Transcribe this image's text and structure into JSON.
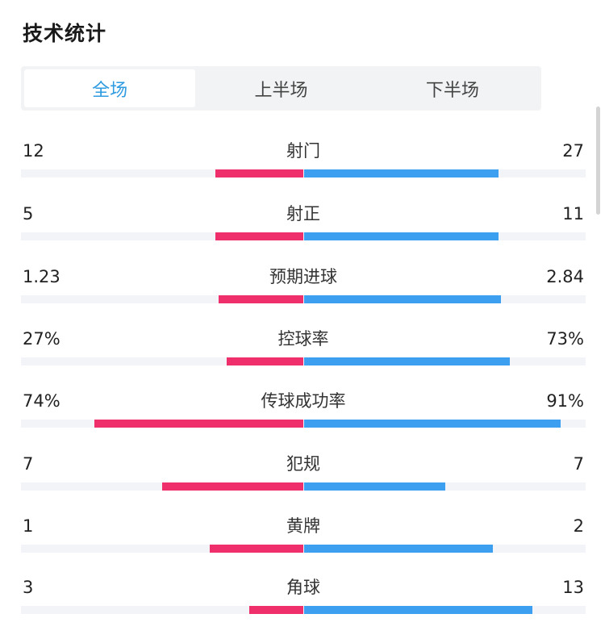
{
  "page": {
    "title": "技术统计"
  },
  "tabs": [
    {
      "label": "全场",
      "active": true
    },
    {
      "label": "上半场",
      "active": false
    },
    {
      "label": "下半场",
      "active": false
    }
  ],
  "colors": {
    "home_bar": "#ee2f6b",
    "away_bar": "#3d9ff0",
    "active_tab": "#2f9be0"
  },
  "stats": [
    {
      "label": "射门",
      "home": "12",
      "away": "27",
      "home_fill": 0.31,
      "away_fill": 0.69
    },
    {
      "label": "射正",
      "home": "5",
      "away": "11",
      "home_fill": 0.31,
      "away_fill": 0.69
    },
    {
      "label": "预期进球",
      "home": "1.23",
      "away": "2.84",
      "home_fill": 0.3,
      "away_fill": 0.7
    },
    {
      "label": "控球率",
      "home": "27%",
      "away": "73%",
      "home_fill": 0.27,
      "away_fill": 0.73
    },
    {
      "label": "传球成功率",
      "home": "74%",
      "away": "91%",
      "home_fill": 0.74,
      "away_fill": 0.91
    },
    {
      "label": "犯规",
      "home": "7",
      "away": "7",
      "home_fill": 0.5,
      "away_fill": 0.5
    },
    {
      "label": "黄牌",
      "home": "1",
      "away": "2",
      "home_fill": 0.33,
      "away_fill": 0.67
    },
    {
      "label": "角球",
      "home": "3",
      "away": "13",
      "home_fill": 0.19,
      "away_fill": 0.81
    }
  ]
}
